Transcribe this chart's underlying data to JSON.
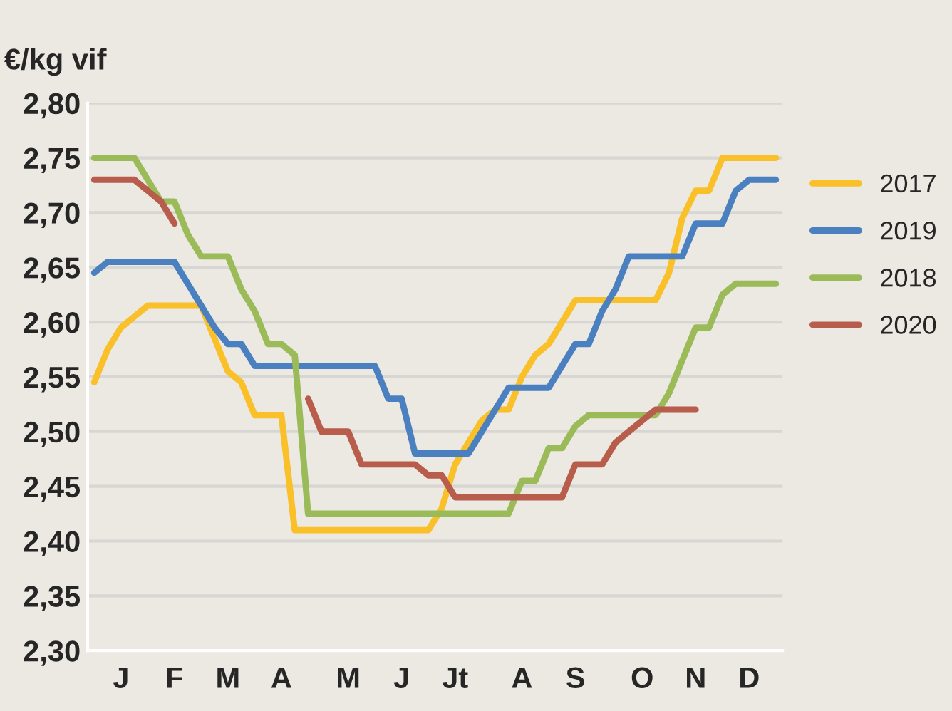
{
  "chart_data": {
    "type": "line",
    "ylabel": "€/kg vif",
    "categories": [
      null,
      null,
      "J",
      null,
      null,
      null,
      "F",
      null,
      null,
      null,
      "M",
      null,
      null,
      null,
      "A",
      null,
      null,
      null,
      null,
      "M",
      null,
      null,
      null,
      "J",
      null,
      null,
      null,
      "Jt",
      null,
      null,
      null,
      null,
      "A",
      null,
      null,
      null,
      "S",
      null,
      null,
      null,
      null,
      "O",
      null,
      null,
      null,
      "N",
      null,
      null,
      null,
      "D",
      null,
      null
    ],
    "series": [
      {
        "name": "2017",
        "color": "#f9c02a",
        "values": [
          2.545,
          2.575,
          2.595,
          2.605,
          2.615,
          2.615,
          2.615,
          2.615,
          2.615,
          2.585,
          2.555,
          2.545,
          2.515,
          2.515,
          2.515,
          2.41,
          2.41,
          2.41,
          2.41,
          2.41,
          2.41,
          2.41,
          2.41,
          2.41,
          2.41,
          2.41,
          2.43,
          2.47,
          2.49,
          2.51,
          2.52,
          2.52,
          2.55,
          2.57,
          2.58,
          2.6,
          2.62,
          2.62,
          2.62,
          2.62,
          2.62,
          2.62,
          2.62,
          2.645,
          2.695,
          2.72,
          2.72,
          2.75,
          2.75,
          2.75,
          2.75,
          2.75
        ]
      },
      {
        "name": "2019",
        "color": "#4a80c0",
        "values": [
          2.645,
          2.655,
          2.655,
          2.655,
          2.655,
          2.655,
          2.655,
          2.635,
          2.615,
          2.595,
          2.58,
          2.58,
          2.56,
          2.56,
          2.56,
          2.56,
          2.56,
          2.56,
          2.56,
          2.56,
          2.56,
          2.56,
          2.53,
          2.53,
          2.48,
          2.48,
          2.48,
          2.48,
          2.48,
          2.5,
          2.52,
          2.54,
          2.54,
          2.54,
          2.54,
          2.56,
          2.58,
          2.58,
          2.61,
          2.63,
          2.66,
          2.66,
          2.66,
          2.66,
          2.66,
          2.69,
          2.69,
          2.69,
          2.72,
          2.73,
          2.73,
          2.73
        ]
      },
      {
        "name": "2018",
        "color": "#9bbb59",
        "values": [
          2.75,
          2.75,
          2.75,
          2.75,
          2.73,
          2.71,
          2.71,
          2.68,
          2.66,
          2.66,
          2.66,
          2.63,
          2.61,
          2.58,
          2.58,
          2.57,
          2.425,
          2.425,
          2.425,
          2.425,
          2.425,
          2.425,
          2.425,
          2.425,
          2.425,
          2.425,
          2.425,
          2.425,
          2.425,
          2.425,
          2.425,
          2.425,
          2.455,
          2.455,
          2.485,
          2.485,
          2.505,
          2.515,
          2.515,
          2.515,
          2.515,
          2.515,
          2.515,
          2.535,
          2.565,
          2.595,
          2.595,
          2.625,
          2.635,
          2.635,
          2.635,
          2.635
        ]
      },
      {
        "name": "2020",
        "color": "#b85c4c",
        "values": [
          2.73,
          2.73,
          2.73,
          2.73,
          2.72,
          2.71,
          2.69,
          null,
          null,
          null,
          null,
          null,
          null,
          null,
          null,
          null,
          2.53,
          2.5,
          2.5,
          2.5,
          2.47,
          2.47,
          2.47,
          2.47,
          2.47,
          2.46,
          2.46,
          2.44,
          2.44,
          2.44,
          2.44,
          2.44,
          2.44,
          2.44,
          2.44,
          2.44,
          2.47,
          2.47,
          2.47,
          2.49,
          2.5,
          2.51,
          2.52,
          2.52,
          2.52,
          2.52,
          null,
          null,
          null,
          null,
          null,
          null
        ]
      }
    ],
    "ylim": [
      2.3,
      2.8
    ],
    "yticks": [
      {
        "value": 2.3,
        "label": "2,30"
      },
      {
        "value": 2.35,
        "label": "2,35"
      },
      {
        "value": 2.4,
        "label": "2,40"
      },
      {
        "value": 2.45,
        "label": "2,45"
      },
      {
        "value": 2.5,
        "label": "2,50"
      },
      {
        "value": 2.55,
        "label": "2,55"
      },
      {
        "value": 2.6,
        "label": "2,60"
      },
      {
        "value": 2.65,
        "label": "2,65"
      },
      {
        "value": 2.7,
        "label": "2,70"
      },
      {
        "value": 2.75,
        "label": "2,75"
      },
      {
        "value": 2.8,
        "label": "2,80"
      }
    ],
    "grid": "y",
    "legend": "right",
    "line_style": "solid",
    "marker": "none"
  }
}
